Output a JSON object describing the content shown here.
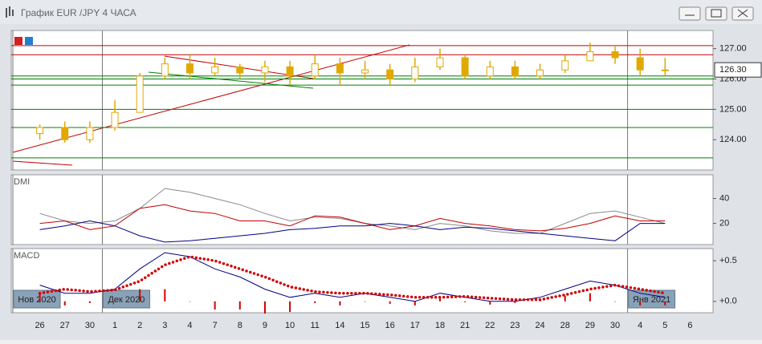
{
  "window_title": "График EUR /JPY  4 ЧАСА",
  "chart_data": [
    {
      "type": "candlestick",
      "categories": [
        "26",
        "27",
        "30",
        "1",
        "2",
        "3",
        "4",
        "7",
        "8",
        "9",
        "10",
        "11",
        "14",
        "15",
        "16",
        "17",
        "18",
        "21",
        "22",
        "23",
        "24",
        "28",
        "29",
        "30",
        "4",
        "5",
        "6"
      ],
      "months": [
        "Нов 2020",
        "Дек 2020",
        "Янв 2021"
      ],
      "color": "#e0a800",
      "open": [
        124.2,
        124.4,
        124.0,
        124.4,
        124.9,
        126.1,
        126.5,
        126.2,
        126.4,
        126.2,
        126.4,
        126.1,
        126.5,
        126.2,
        126.3,
        126.0,
        126.4,
        126.7,
        126.1,
        126.4,
        126.1,
        126.3,
        126.6,
        126.9,
        126.7,
        126.3,
        null
      ],
      "high": [
        124.5,
        124.6,
        124.6,
        125.3,
        126.2,
        126.7,
        126.8,
        126.7,
        126.5,
        126.6,
        126.6,
        126.8,
        126.7,
        126.6,
        126.5,
        126.7,
        127.0,
        126.8,
        126.6,
        126.6,
        126.5,
        126.8,
        127.2,
        127.1,
        127.0,
        126.7,
        null
      ],
      "low": [
        124.0,
        123.9,
        123.9,
        124.3,
        124.9,
        126.0,
        126.0,
        126.1,
        126.0,
        125.9,
        125.8,
        126.0,
        125.8,
        126.0,
        125.8,
        125.9,
        126.3,
        126.0,
        126.0,
        126.0,
        126.0,
        126.2,
        126.6,
        126.5,
        126.1,
        126.1,
        null
      ],
      "close": [
        124.4,
        124.0,
        124.4,
        124.9,
        126.1,
        126.5,
        126.2,
        126.4,
        126.2,
        126.4,
        126.1,
        126.5,
        126.2,
        126.3,
        126.0,
        126.4,
        126.7,
        126.1,
        126.4,
        126.1,
        126.3,
        126.6,
        126.9,
        126.7,
        126.3,
        126.3,
        null
      ],
      "ylim": [
        123,
        127.6
      ],
      "yticks": [
        {
          "value": 124,
          "label": "124.00"
        },
        {
          "value": 125,
          "label": "125.00"
        },
        {
          "value": 126,
          "label": "126.00"
        },
        {
          "value": 127,
          "label": "127.00"
        }
      ],
      "last_price": {
        "value": 126.3,
        "label": "126.30"
      },
      "hlines": [
        {
          "value": 127.1,
          "color": "#c00000"
        },
        {
          "value": 126.8,
          "color": "#c00000"
        },
        {
          "value": 126.1,
          "color": "#008000"
        },
        {
          "value": 126.0,
          "color": "#008000"
        },
        {
          "value": 125.8,
          "color": "#008000"
        },
        {
          "value": 125.0,
          "color": "#008000"
        },
        {
          "value": 124.4,
          "color": "#008000"
        },
        {
          "value": 123.4,
          "color": "#008000"
        }
      ]
    },
    {
      "type": "line",
      "title": "DMI",
      "series": [
        {
          "color": "#888888",
          "values": [
            28,
            22,
            20,
            22,
            32,
            48,
            45,
            40,
            35,
            28,
            22,
            25,
            24,
            20,
            18,
            15,
            20,
            18,
            14,
            12,
            12,
            20,
            28,
            30,
            25,
            20,
            null
          ]
        },
        {
          "color": "#c00000",
          "values": [
            20,
            22,
            15,
            18,
            32,
            35,
            30,
            28,
            22,
            22,
            18,
            26,
            25,
            20,
            15,
            18,
            24,
            20,
            18,
            15,
            14,
            16,
            20,
            26,
            22,
            22,
            null
          ]
        },
        {
          "color": "#000080",
          "values": [
            15,
            18,
            22,
            18,
            10,
            5,
            6,
            8,
            10,
            12,
            15,
            16,
            18,
            18,
            20,
            18,
            15,
            17,
            16,
            14,
            12,
            10,
            8,
            6,
            20,
            20,
            null
          ]
        }
      ],
      "ylim": [
        3,
        59
      ],
      "yticks": [
        20,
        40
      ]
    },
    {
      "type": "line",
      "title": "MACD",
      "series": [
        {
          "color": "#000080",
          "style": "solid",
          "values": [
            0.2,
            0.1,
            0.1,
            0.15,
            0.4,
            0.6,
            0.55,
            0.4,
            0.3,
            0.15,
            0.05,
            0.1,
            0.05,
            0.1,
            0.05,
            0.0,
            0.1,
            0.05,
            0.0,
            0.0,
            0.05,
            0.15,
            0.25,
            0.2,
            0.1,
            0.05,
            null
          ]
        },
        {
          "color": "#d00000",
          "style": "dotted",
          "values": [
            0.1,
            0.15,
            0.12,
            0.14,
            0.25,
            0.45,
            0.55,
            0.5,
            0.4,
            0.3,
            0.18,
            0.12,
            0.1,
            0.1,
            0.08,
            0.05,
            0.05,
            0.06,
            0.04,
            0.02,
            0.02,
            0.08,
            0.15,
            0.2,
            0.15,
            0.1,
            null
          ]
        },
        {
          "color": "#d00000",
          "style": "bar",
          "values": [
            0.1,
            -0.05,
            -0.02,
            0.01,
            0.15,
            0.15,
            0.0,
            -0.1,
            -0.1,
            -0.15,
            -0.13,
            -0.02,
            -0.05,
            0.0,
            -0.03,
            -0.05,
            0.05,
            -0.01,
            -0.04,
            -0.02,
            0.03,
            0.07,
            0.1,
            0.0,
            -0.05,
            -0.05,
            null
          ]
        }
      ],
      "ylim": [
        -0.14,
        0.65
      ],
      "yticks": [
        {
          "value": 0.5,
          "label": "+0.5"
        },
        {
          "value": 0,
          "label": "+0.0"
        }
      ]
    }
  ]
}
